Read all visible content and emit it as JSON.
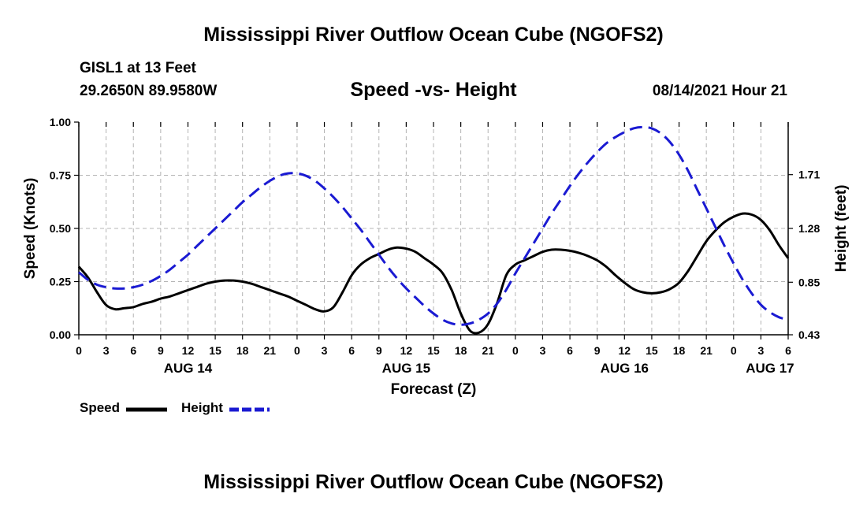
{
  "header": {
    "title": "Mississippi River Outflow Ocean Cube (NGOFS2)",
    "station": "GISL1 at 13 Feet",
    "coordinates": "29.2650N  89.9580W",
    "subtitle": "Speed -vs- Height",
    "timestamp": "08/14/2021 Hour 21"
  },
  "footer": {
    "title": "Mississippi River Outflow Ocean Cube (NGOFS2)"
  },
  "legend": {
    "speed_label": "Speed",
    "height_label": "Height"
  },
  "colors": {
    "speed": "#000000",
    "height": "#1a1ad2",
    "grid": "#b4b4b4"
  },
  "chart_data": {
    "type": "line",
    "title": "Speed -vs- Height",
    "xlabel": "Forecast (Z)",
    "ylabel": "Speed (Knots)",
    "y2label": "Height (feet)",
    "xlim": [
      0,
      78
    ],
    "ylim": [
      0,
      1
    ],
    "y2lim": [
      0.43,
      2.13
    ],
    "grid": true,
    "legend_position": "bottom-left",
    "x_ticks": [
      0,
      3,
      6,
      9,
      12,
      15,
      18,
      21,
      24,
      27,
      30,
      33,
      36,
      39,
      42,
      45,
      48,
      51,
      54,
      57,
      60,
      63,
      66,
      69,
      72,
      75,
      78
    ],
    "x_tick_labels": [
      "0",
      "3",
      "6",
      "9",
      "12",
      "15",
      "18",
      "21",
      "0",
      "3",
      "6",
      "9",
      "12",
      "15",
      "18",
      "21",
      "0",
      "3",
      "6",
      "9",
      "12",
      "15",
      "18",
      "21",
      "0",
      "3",
      "6"
    ],
    "day_labels": [
      {
        "x": 12,
        "label": "AUG 14"
      },
      {
        "x": 36,
        "label": "AUG 15"
      },
      {
        "x": 60,
        "label": "AUG 16"
      },
      {
        "x": 76,
        "label": "AUG 17"
      }
    ],
    "y_ticks": [
      0,
      0.25,
      0.5,
      0.75,
      1.0
    ],
    "y_tick_labels": [
      "0.00",
      "0.25",
      "0.50",
      "0.75",
      "1.00"
    ],
    "y2_ticks": [
      0.43,
      0.85,
      1.28,
      1.71
    ],
    "y2_tick_labels": [
      "0.43",
      "0.85",
      "1.28",
      "1.71"
    ],
    "series": [
      {
        "name": "Speed",
        "axis": "left",
        "style": "solid",
        "points": [
          [
            0,
            0.32
          ],
          [
            1,
            0.27
          ],
          [
            2,
            0.2
          ],
          [
            3,
            0.14
          ],
          [
            4,
            0.12
          ],
          [
            5,
            0.125
          ],
          [
            6,
            0.13
          ],
          [
            7,
            0.145
          ],
          [
            8,
            0.155
          ],
          [
            9,
            0.17
          ],
          [
            10,
            0.18
          ],
          [
            11,
            0.195
          ],
          [
            12,
            0.21
          ],
          [
            13,
            0.225
          ],
          [
            14,
            0.24
          ],
          [
            15,
            0.25
          ],
          [
            16,
            0.255
          ],
          [
            17,
            0.255
          ],
          [
            18,
            0.25
          ],
          [
            19,
            0.24
          ],
          [
            20,
            0.225
          ],
          [
            21,
            0.21
          ],
          [
            22,
            0.195
          ],
          [
            23,
            0.18
          ],
          [
            24,
            0.16
          ],
          [
            25,
            0.14
          ],
          [
            26,
            0.12
          ],
          [
            27,
            0.11
          ],
          [
            28,
            0.13
          ],
          [
            29,
            0.2
          ],
          [
            30,
            0.28
          ],
          [
            31,
            0.33
          ],
          [
            32,
            0.36
          ],
          [
            33,
            0.38
          ],
          [
            34,
            0.4
          ],
          [
            35,
            0.41
          ],
          [
            36,
            0.405
          ],
          [
            37,
            0.39
          ],
          [
            38,
            0.36
          ],
          [
            39,
            0.33
          ],
          [
            40,
            0.29
          ],
          [
            41,
            0.21
          ],
          [
            42,
            0.1
          ],
          [
            43,
            0.02
          ],
          [
            44,
            0.01
          ],
          [
            45,
            0.05
          ],
          [
            46,
            0.15
          ],
          [
            47,
            0.28
          ],
          [
            48,
            0.33
          ],
          [
            49,
            0.35
          ],
          [
            50,
            0.37
          ],
          [
            51,
            0.39
          ],
          [
            52,
            0.4
          ],
          [
            53,
            0.4
          ],
          [
            54,
            0.395
          ],
          [
            55,
            0.385
          ],
          [
            56,
            0.37
          ],
          [
            57,
            0.35
          ],
          [
            58,
            0.32
          ],
          [
            59,
            0.28
          ],
          [
            60,
            0.245
          ],
          [
            61,
            0.215
          ],
          [
            62,
            0.2
          ],
          [
            63,
            0.195
          ],
          [
            64,
            0.2
          ],
          [
            65,
            0.215
          ],
          [
            66,
            0.245
          ],
          [
            67,
            0.3
          ],
          [
            68,
            0.37
          ],
          [
            69,
            0.44
          ],
          [
            70,
            0.49
          ],
          [
            71,
            0.53
          ],
          [
            72,
            0.555
          ],
          [
            73,
            0.57
          ],
          [
            74,
            0.565
          ],
          [
            75,
            0.54
          ],
          [
            76,
            0.49
          ],
          [
            77,
            0.42
          ],
          [
            78,
            0.36
          ]
        ]
      },
      {
        "name": "Height",
        "axis": "right",
        "style": "dashed",
        "points": [
          [
            0,
            0.93
          ],
          [
            1,
            0.87
          ],
          [
            2,
            0.83
          ],
          [
            3,
            0.81
          ],
          [
            4,
            0.8
          ],
          [
            5,
            0.8
          ],
          [
            6,
            0.81
          ],
          [
            7,
            0.83
          ],
          [
            8,
            0.86
          ],
          [
            9,
            0.9
          ],
          [
            10,
            0.95
          ],
          [
            11,
            1.01
          ],
          [
            12,
            1.07
          ],
          [
            13,
            1.14
          ],
          [
            14,
            1.21
          ],
          [
            15,
            1.28
          ],
          [
            16,
            1.35
          ],
          [
            17,
            1.42
          ],
          [
            18,
            1.49
          ],
          [
            19,
            1.55
          ],
          [
            20,
            1.61
          ],
          [
            21,
            1.66
          ],
          [
            22,
            1.7
          ],
          [
            23,
            1.72
          ],
          [
            24,
            1.72
          ],
          [
            25,
            1.7
          ],
          [
            26,
            1.66
          ],
          [
            27,
            1.6
          ],
          [
            28,
            1.53
          ],
          [
            29,
            1.45
          ],
          [
            30,
            1.36
          ],
          [
            31,
            1.27
          ],
          [
            32,
            1.17
          ],
          [
            33,
            1.07
          ],
          [
            34,
            0.97
          ],
          [
            35,
            0.88
          ],
          [
            36,
            0.8
          ],
          [
            37,
            0.73
          ],
          [
            38,
            0.66
          ],
          [
            39,
            0.6
          ],
          [
            40,
            0.55
          ],
          [
            41,
            0.52
          ],
          [
            42,
            0.51
          ],
          [
            43,
            0.52
          ],
          [
            44,
            0.55
          ],
          [
            45,
            0.6
          ],
          [
            46,
            0.68
          ],
          [
            47,
            0.79
          ],
          [
            48,
            0.92
          ],
          [
            49,
            1.04
          ],
          [
            50,
            1.16
          ],
          [
            51,
            1.28
          ],
          [
            52,
            1.4
          ],
          [
            53,
            1.51
          ],
          [
            54,
            1.62
          ],
          [
            55,
            1.72
          ],
          [
            56,
            1.81
          ],
          [
            57,
            1.89
          ],
          [
            58,
            1.96
          ],
          [
            59,
            2.01
          ],
          [
            60,
            2.05
          ],
          [
            61,
            2.08
          ],
          [
            62,
            2.09
          ],
          [
            63,
            2.08
          ],
          [
            64,
            2.04
          ],
          [
            65,
            1.97
          ],
          [
            66,
            1.87
          ],
          [
            67,
            1.74
          ],
          [
            68,
            1.59
          ],
          [
            69,
            1.44
          ],
          [
            70,
            1.29
          ],
          [
            71,
            1.14
          ],
          [
            72,
            1.0
          ],
          [
            73,
            0.87
          ],
          [
            74,
            0.76
          ],
          [
            75,
            0.67
          ],
          [
            76,
            0.61
          ],
          [
            77,
            0.57
          ],
          [
            78,
            0.55
          ]
        ]
      }
    ]
  }
}
